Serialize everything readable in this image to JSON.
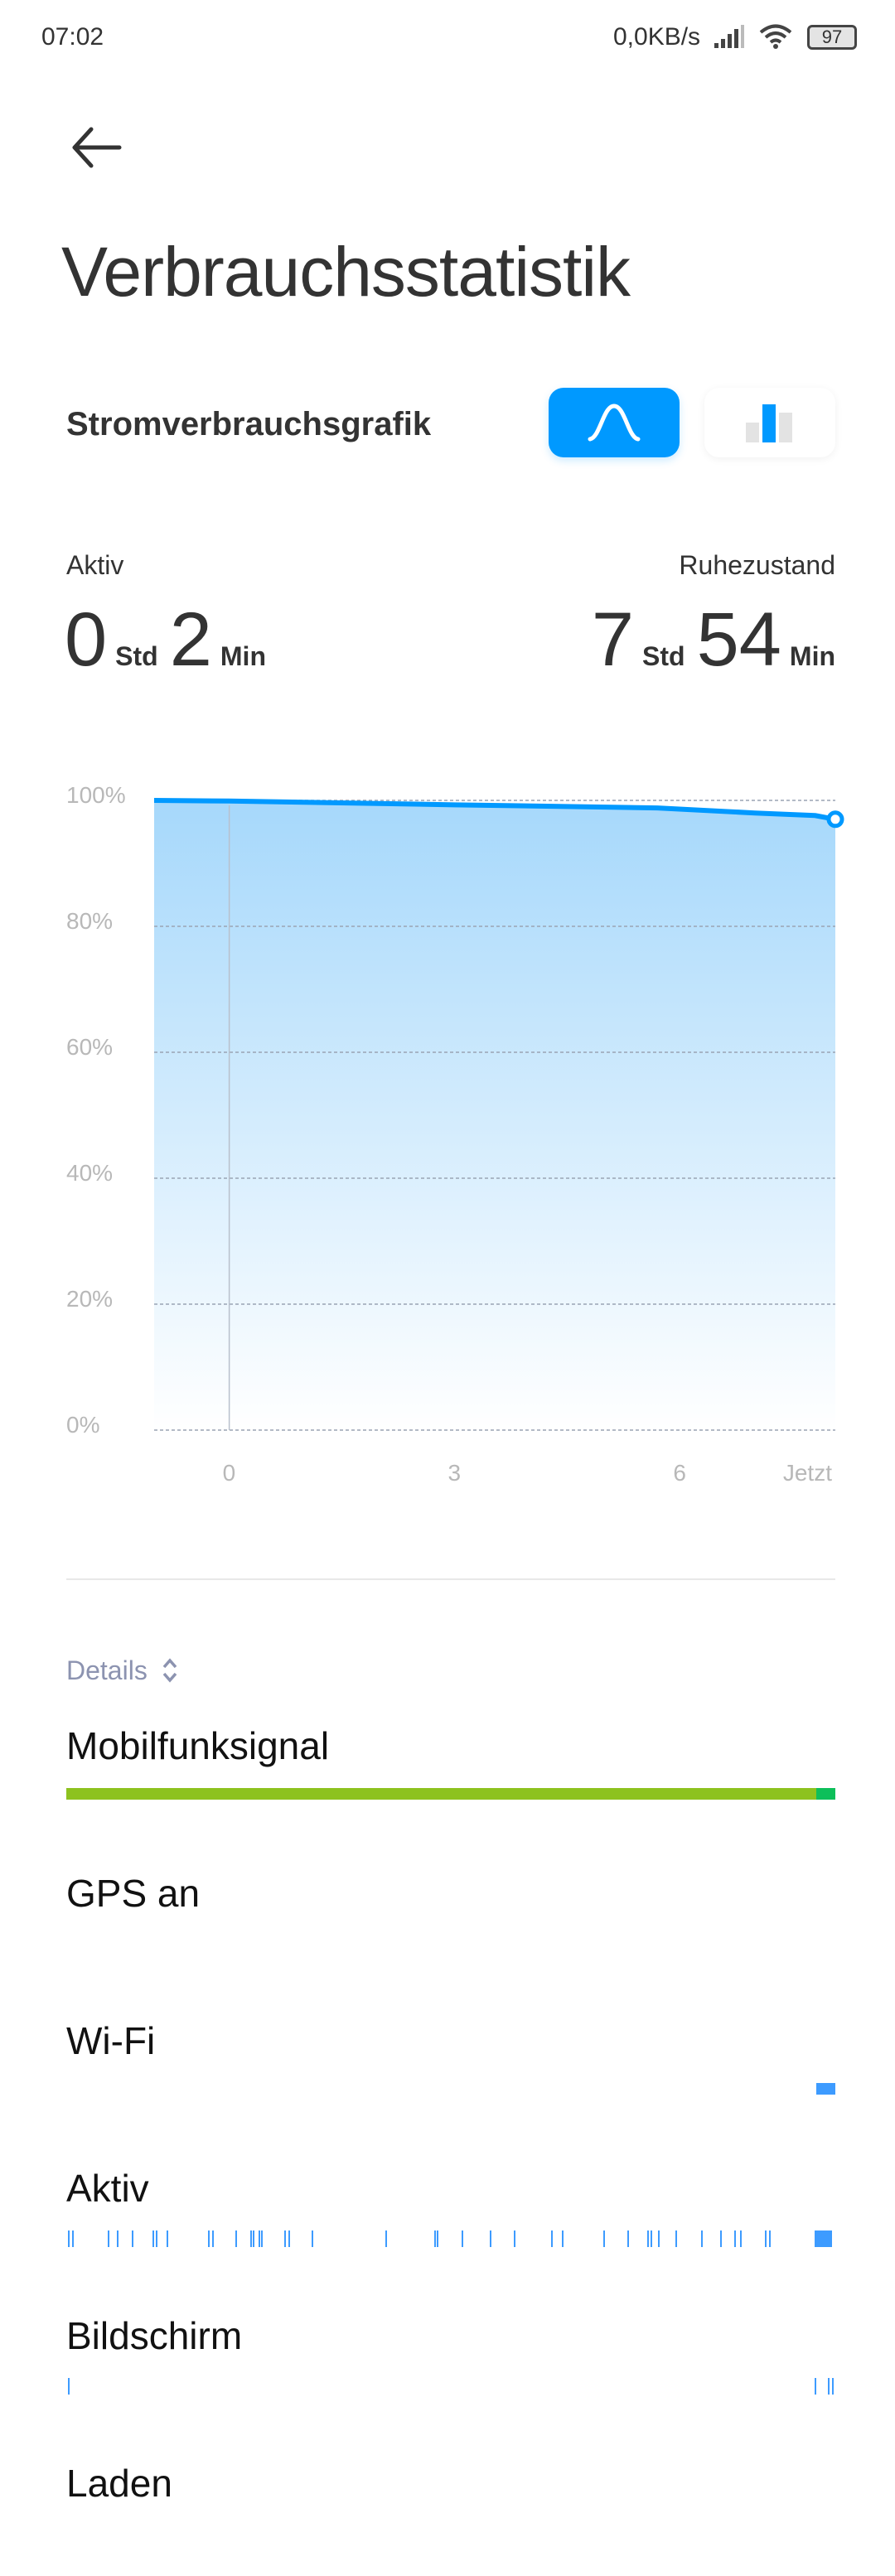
{
  "status_bar": {
    "time": "07:02",
    "net_speed": "0,0KB/s",
    "battery": "97",
    "icons": [
      "signal-icon",
      "wifi-icon",
      "battery-icon"
    ]
  },
  "header": {
    "back_icon": "arrow-left-icon",
    "title": "Verbrauchsstatistik"
  },
  "graph_section": {
    "title": "Stromverbrauchsgrafik",
    "toggle": [
      {
        "icon": "curve-icon",
        "selected": true
      },
      {
        "icon": "bar-chart-icon",
        "selected": false
      }
    ],
    "accent": "#0099ff"
  },
  "summary": {
    "active": {
      "label": "Aktiv",
      "hours": "0",
      "hours_unit": "Std",
      "minutes": "2",
      "minutes_unit": "Min"
    },
    "idle": {
      "label": "Ruhezustand",
      "hours": "7",
      "hours_unit": "Std",
      "minutes": "54",
      "minutes_unit": "Min"
    }
  },
  "chart_data": {
    "type": "area",
    "title": "",
    "xlabel": "",
    "ylabel": "",
    "x_ticks": [
      {
        "value": 0,
        "label": "0"
      },
      {
        "value": 3,
        "label": "3"
      },
      {
        "value": 6,
        "label": "6"
      },
      {
        "value": 8.07,
        "label": "Jetzt"
      }
    ],
    "y_ticks": [
      "0%",
      "20%",
      "40%",
      "60%",
      "80%",
      "100%"
    ],
    "ylim": [
      0,
      100
    ],
    "xlim": [
      -1,
      8.07
    ],
    "grid": true,
    "points": [
      [
        -1,
        100
      ],
      [
        0,
        99.9
      ],
      [
        3,
        99.3
      ],
      [
        5.7,
        98.8
      ],
      [
        7,
        98
      ],
      [
        7.8,
        97.6
      ],
      [
        8.07,
        97
      ]
    ],
    "line_color": "#0099ff"
  },
  "details": {
    "label": "Details",
    "icon": "sort-chevrons-icon",
    "rows": [
      {
        "label": "Mobilfunksignal",
        "segments": [
          {
            "from": -1,
            "to": 7.85,
            "color": "#8dc21f"
          },
          {
            "from": 7.85,
            "to": 8.07,
            "color": "#0dbf5a"
          }
        ]
      },
      {
        "label": "GPS an",
        "segments": []
      },
      {
        "label": "Wi-Fi",
        "segments": [
          {
            "from": 7.85,
            "to": 8.07,
            "color": "#3d9bff"
          }
        ]
      },
      {
        "label": "Aktiv",
        "ticks": [
          -0.98,
          -0.93,
          -0.51,
          -0.4,
          -0.23,
          0.02,
          0.06,
          0.18,
          0.67,
          0.72,
          0.99,
          1.17,
          1.2,
          1.27,
          1.3,
          1.57,
          1.62,
          1.89,
          2.76,
          3.34,
          3.37,
          3.66,
          3.99,
          4.28,
          4.72,
          4.84,
          5.33,
          5.62,
          5.85,
          5.89,
          5.98,
          6.18,
          6.49,
          6.71,
          6.88,
          6.95,
          7.24,
          7.29
        ],
        "segments": [
          {
            "from": 7.83,
            "to": 8.03,
            "color": "#3d9bff"
          }
        ]
      },
      {
        "label": "Bildschirm",
        "ticks": [
          -0.98,
          7.83,
          7.98,
          8.03
        ],
        "segments": []
      },
      {
        "label": "Laden",
        "segments": []
      }
    ]
  }
}
